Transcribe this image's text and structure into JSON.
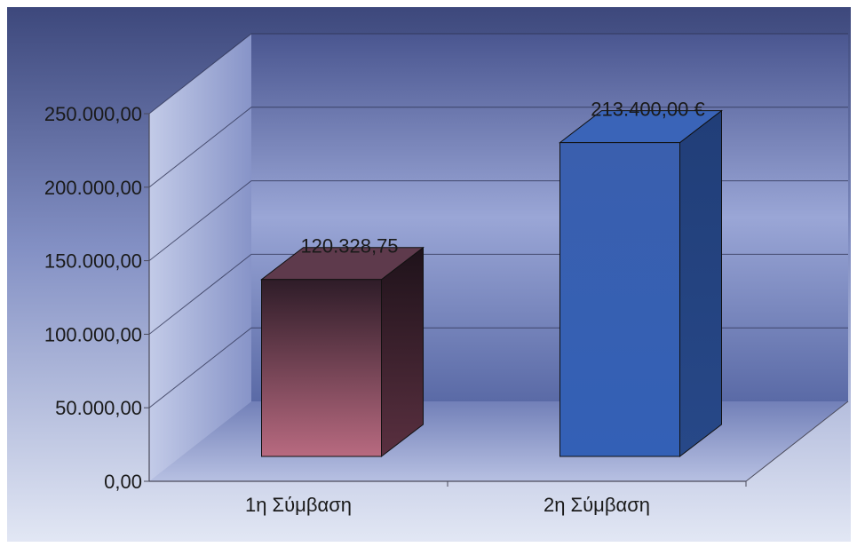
{
  "chart_data": {
    "type": "bar",
    "style": "3d-column",
    "categories": [
      "1η Σύμβαση",
      "2η Σύμβαση"
    ],
    "values": [
      120328.75,
      213400.0
    ],
    "data_labels": [
      "120.328,75",
      "213.400,00 €"
    ],
    "y_ticks": [
      0,
      50000,
      100000,
      150000,
      200000,
      250000
    ],
    "y_tick_labels": [
      "0,00",
      "50.000,00",
      "100.000,00",
      "150.000,00",
      "200.000,00",
      "250.000,00"
    ],
    "ylim": [
      0,
      250000
    ],
    "grid": true,
    "legend": "none",
    "title": "",
    "xlabel": "",
    "ylabel": "",
    "colors": {
      "bar_1": "#8a4a5c",
      "bar_2": "#3c64b0",
      "background_top": "#3e4a7e",
      "background_bottom": "#c6cfe8"
    }
  }
}
